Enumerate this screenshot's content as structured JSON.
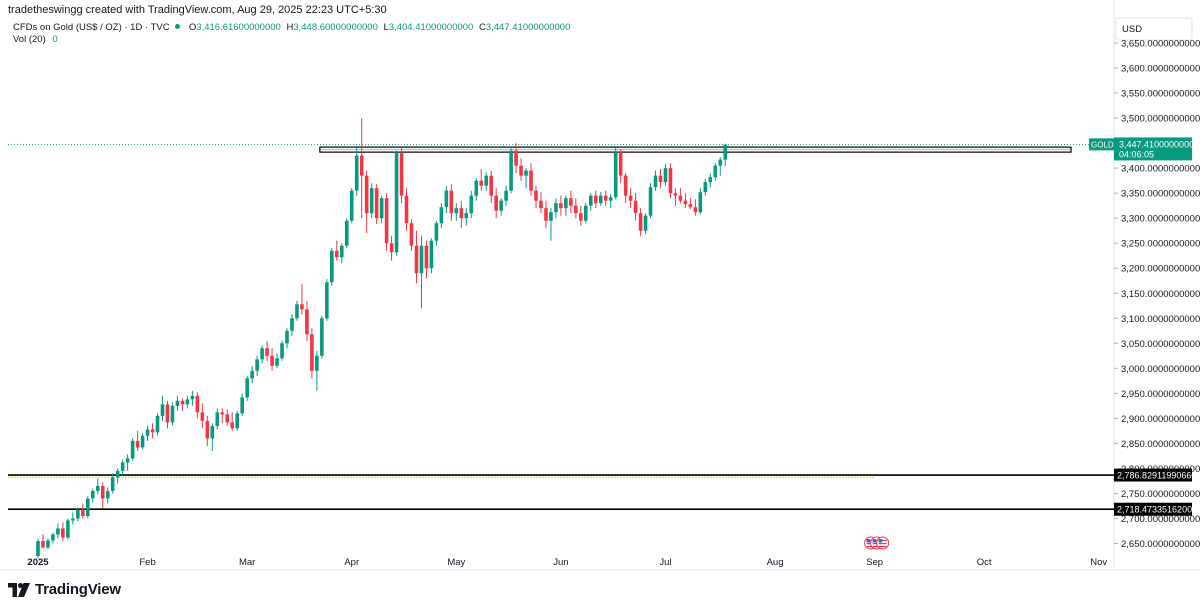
{
  "credit": "tradetheswingg created with TradingView.com, Aug 29, 2025 22:23 UTC+5:30",
  "legend": {
    "symbol": "CFDs on Gold (US$ / OZ) · 1D · TVC",
    "open_key": "O",
    "open": "3,416.61600000000",
    "high_key": "H",
    "high": "3,448.60000000000",
    "low_key": "L",
    "low": "3,404.41000000000",
    "close_key": "C",
    "close": "3,447.41000000000",
    "vol": "Vol (20)",
    "vol_value": "0"
  },
  "brand": "TradingView",
  "colors": {
    "up": "#089981",
    "down": "#f23645",
    "line": "#000000",
    "accent_yellow": "#f5e600",
    "price_label": "#089981"
  },
  "chart_data": {
    "type": "candlestick",
    "currency": "USD",
    "ylim": [
      2635,
      3700
    ],
    "y_ticks": [
      {
        "value": 2650,
        "label": "2,650.000000000000"
      },
      {
        "value": 2700,
        "label": "2,700.000000000000"
      },
      {
        "value": 2750,
        "label": "2,750.000000000000"
      },
      {
        "value": 2800,
        "label": "2,800.000000000000"
      },
      {
        "value": 2850,
        "label": "2,850.000000000000"
      },
      {
        "value": 2900,
        "label": "2,900.000000000000"
      },
      {
        "value": 2950,
        "label": "2,950.000000000000"
      },
      {
        "value": 3000,
        "label": "3,000.000000000000"
      },
      {
        "value": 3050,
        "label": "3,050.000000000000"
      },
      {
        "value": 3100,
        "label": "3,100.000000000000"
      },
      {
        "value": 3150,
        "label": "3,150.000000000000"
      },
      {
        "value": 3200,
        "label": "3,200.000000000000"
      },
      {
        "value": 3250,
        "label": "3,250.000000000000"
      },
      {
        "value": 3300,
        "label": "3,300.000000000000"
      },
      {
        "value": 3350,
        "label": "3,350.000000000000"
      },
      {
        "value": 3400,
        "label": "3,400.000000000000"
      },
      {
        "value": 3500,
        "label": "3,500.000000000000"
      },
      {
        "value": 3550,
        "label": "3,550.000000000000"
      },
      {
        "value": 3600,
        "label": "3,600.000000000000"
      },
      {
        "value": 3650,
        "label": "3,650.000000000000"
      }
    ],
    "x_ticks": [
      {
        "label": "2025",
        "i": 0
      },
      {
        "label": "Feb",
        "i": 22
      },
      {
        "label": "Mar",
        "i": 42
      },
      {
        "label": "Apr",
        "i": 63
      },
      {
        "label": "May",
        "i": 84
      },
      {
        "label": "Jun",
        "i": 105
      },
      {
        "label": "Jul",
        "i": 126
      },
      {
        "label": "Aug",
        "i": 148
      },
      {
        "label": "Sep",
        "i": 168
      },
      {
        "label": "Oct",
        "i": 190
      },
      {
        "label": "Nov",
        "i": 213
      }
    ],
    "last_price": {
      "tag": "GOLD",
      "value": 3447.41,
      "label": "3,447.41000000000",
      "countdown": "04:06:05"
    },
    "horizontal_lines": [
      {
        "value": 2786.83,
        "label": "2,786.829119906603"
      },
      {
        "value": 2718.47,
        "label": "2,718.473351620032"
      }
    ],
    "resistance_zone": {
      "top": 3442,
      "bottom": 3432,
      "start_i": 57,
      "end_i": 213
    },
    "candles": [
      [
        2625,
        2660,
        2620,
        2655
      ],
      [
        2655,
        2668,
        2640,
        2642
      ],
      [
        2642,
        2660,
        2638,
        2656
      ],
      [
        2656,
        2672,
        2650,
        2668
      ],
      [
        2668,
        2690,
        2660,
        2680
      ],
      [
        2680,
        2692,
        2655,
        2662
      ],
      [
        2662,
        2700,
        2658,
        2696
      ],
      [
        2696,
        2712,
        2688,
        2700
      ],
      [
        2700,
        2722,
        2694,
        2718
      ],
      [
        2718,
        2730,
        2700,
        2705
      ],
      [
        2705,
        2745,
        2700,
        2740
      ],
      [
        2740,
        2760,
        2732,
        2755
      ],
      [
        2755,
        2780,
        2748,
        2765
      ],
      [
        2765,
        2772,
        2720,
        2740
      ],
      [
        2740,
        2762,
        2730,
        2755
      ],
      [
        2755,
        2790,
        2750,
        2782
      ],
      [
        2782,
        2800,
        2770,
        2795
      ],
      [
        2795,
        2818,
        2785,
        2812
      ],
      [
        2812,
        2828,
        2795,
        2820
      ],
      [
        2820,
        2860,
        2815,
        2855
      ],
      [
        2855,
        2875,
        2835,
        2842
      ],
      [
        2842,
        2870,
        2838,
        2865
      ],
      [
        2865,
        2885,
        2855,
        2878
      ],
      [
        2878,
        2890,
        2860,
        2872
      ],
      [
        2872,
        2910,
        2866,
        2905
      ],
      [
        2905,
        2945,
        2895,
        2928
      ],
      [
        2928,
        2935,
        2880,
        2892
      ],
      [
        2892,
        2932,
        2886,
        2925
      ],
      [
        2925,
        2945,
        2915,
        2935
      ],
      [
        2935,
        2940,
        2915,
        2928
      ],
      [
        2928,
        2945,
        2920,
        2938
      ],
      [
        2938,
        2955,
        2925,
        2945
      ],
      [
        2945,
        2952,
        2900,
        2912
      ],
      [
        2912,
        2930,
        2880,
        2895
      ],
      [
        2895,
        2905,
        2845,
        2860
      ],
      [
        2860,
        2890,
        2835,
        2885
      ],
      [
        2885,
        2920,
        2878,
        2912
      ],
      [
        2912,
        2920,
        2890,
        2908
      ],
      [
        2908,
        2918,
        2885,
        2892
      ],
      [
        2892,
        2912,
        2875,
        2880
      ],
      [
        2880,
        2915,
        2875,
        2910
      ],
      [
        2910,
        2950,
        2905,
        2942
      ],
      [
        2942,
        2985,
        2935,
        2980
      ],
      [
        2980,
        3005,
        2970,
        2995
      ],
      [
        2995,
        3025,
        2985,
        3018
      ],
      [
        3018,
        3045,
        3010,
        3040
      ],
      [
        3040,
        3055,
        3015,
        3025
      ],
      [
        3025,
        3040,
        2995,
        3005
      ],
      [
        3005,
        3030,
        3000,
        3020
      ],
      [
        3020,
        3055,
        3015,
        3050
      ],
      [
        3050,
        3080,
        3040,
        3075
      ],
      [
        3075,
        3108,
        3065,
        3100
      ],
      [
        3100,
        3135,
        3095,
        3128
      ],
      [
        3128,
        3168,
        3108,
        3118
      ],
      [
        3118,
        3135,
        3055,
        3068
      ],
      [
        3068,
        3080,
        2980,
        2995
      ],
      [
        2995,
        3035,
        2955,
        3025
      ],
      [
        3025,
        3105,
        3020,
        3100
      ],
      [
        3100,
        3178,
        3095,
        3172
      ],
      [
        3172,
        3240,
        3165,
        3235
      ],
      [
        3235,
        3255,
        3215,
        3222
      ],
      [
        3222,
        3250,
        3210,
        3245
      ],
      [
        3245,
        3300,
        3240,
        3295
      ],
      [
        3295,
        3360,
        3290,
        3355
      ],
      [
        3355,
        3440,
        3345,
        3425
      ],
      [
        3425,
        3500,
        3300,
        3385
      ],
      [
        3385,
        3395,
        3270,
        3310
      ],
      [
        3310,
        3370,
        3300,
        3360
      ],
      [
        3360,
        3368,
        3288,
        3300
      ],
      [
        3300,
        3345,
        3290,
        3340
      ],
      [
        3340,
        3350,
        3235,
        3250
      ],
      [
        3250,
        3265,
        3215,
        3232
      ],
      [
        3232,
        3435,
        3225,
        3430
      ],
      [
        3430,
        3440,
        3330,
        3345
      ],
      [
        3345,
        3360,
        3275,
        3290
      ],
      [
        3290,
        3298,
        3235,
        3245
      ],
      [
        3245,
        3275,
        3170,
        3190
      ],
      [
        3190,
        3265,
        3120,
        3245
      ],
      [
        3245,
        3255,
        3180,
        3200
      ],
      [
        3200,
        3260,
        3190,
        3255
      ],
      [
        3255,
        3295,
        3245,
        3290
      ],
      [
        3290,
        3330,
        3280,
        3322
      ],
      [
        3322,
        3365,
        3310,
        3355
      ],
      [
        3355,
        3368,
        3295,
        3310
      ],
      [
        3310,
        3330,
        3295,
        3320
      ],
      [
        3320,
        3335,
        3280,
        3300
      ],
      [
        3300,
        3320,
        3285,
        3310
      ],
      [
        3310,
        3355,
        3300,
        3345
      ],
      [
        3345,
        3380,
        3335,
        3375
      ],
      [
        3375,
        3398,
        3355,
        3365
      ],
      [
        3365,
        3392,
        3355,
        3385
      ],
      [
        3385,
        3395,
        3330,
        3345
      ],
      [
        3345,
        3360,
        3300,
        3315
      ],
      [
        3315,
        3340,
        3305,
        3335
      ],
      [
        3335,
        3365,
        3325,
        3355
      ],
      [
        3355,
        3442,
        3350,
        3435
      ],
      [
        3435,
        3450,
        3390,
        3405
      ],
      [
        3405,
        3420,
        3375,
        3385
      ],
      [
        3385,
        3400,
        3360,
        3395
      ],
      [
        3395,
        3410,
        3345,
        3355
      ],
      [
        3355,
        3365,
        3320,
        3335
      ],
      [
        3335,
        3352,
        3310,
        3320
      ],
      [
        3320,
        3335,
        3280,
        3295
      ],
      [
        3295,
        3320,
        3255,
        3312
      ],
      [
        3312,
        3340,
        3300,
        3330
      ],
      [
        3330,
        3345,
        3305,
        3320
      ],
      [
        3320,
        3345,
        3305,
        3340
      ],
      [
        3340,
        3355,
        3310,
        3325
      ],
      [
        3325,
        3340,
        3300,
        3310
      ],
      [
        3310,
        3325,
        3285,
        3295
      ],
      [
        3295,
        3330,
        3290,
        3325
      ],
      [
        3325,
        3350,
        3315,
        3345
      ],
      [
        3345,
        3355,
        3320,
        3330
      ],
      [
        3330,
        3352,
        3325,
        3345
      ],
      [
        3345,
        3355,
        3325,
        3335
      ],
      [
        3335,
        3348,
        3320,
        3342
      ],
      [
        3342,
        3440,
        3338,
        3432
      ],
      [
        3432,
        3438,
        3370,
        3385
      ],
      [
        3385,
        3390,
        3330,
        3345
      ],
      [
        3345,
        3360,
        3320,
        3335
      ],
      [
        3335,
        3350,
        3295,
        3310
      ],
      [
        3310,
        3320,
        3265,
        3275
      ],
      [
        3275,
        3310,
        3268,
        3305
      ],
      [
        3305,
        3370,
        3300,
        3362
      ],
      [
        3362,
        3395,
        3355,
        3385
      ],
      [
        3385,
        3398,
        3360,
        3372
      ],
      [
        3372,
        3408,
        3365,
        3400
      ],
      [
        3400,
        3410,
        3340,
        3350
      ],
      [
        3350,
        3360,
        3325,
        3345
      ],
      [
        3345,
        3360,
        3330,
        3335
      ],
      [
        3335,
        3350,
        3320,
        3328
      ],
      [
        3328,
        3340,
        3318,
        3322
      ],
      [
        3322,
        3338,
        3305,
        3312
      ],
      [
        3312,
        3360,
        3308,
        3352
      ],
      [
        3352,
        3378,
        3345,
        3372
      ],
      [
        3372,
        3390,
        3362,
        3382
      ],
      [
        3382,
        3410,
        3375,
        3405
      ],
      [
        3405,
        3422,
        3385,
        3417
      ],
      [
        3417,
        3449,
        3404,
        3447
      ]
    ]
  }
}
